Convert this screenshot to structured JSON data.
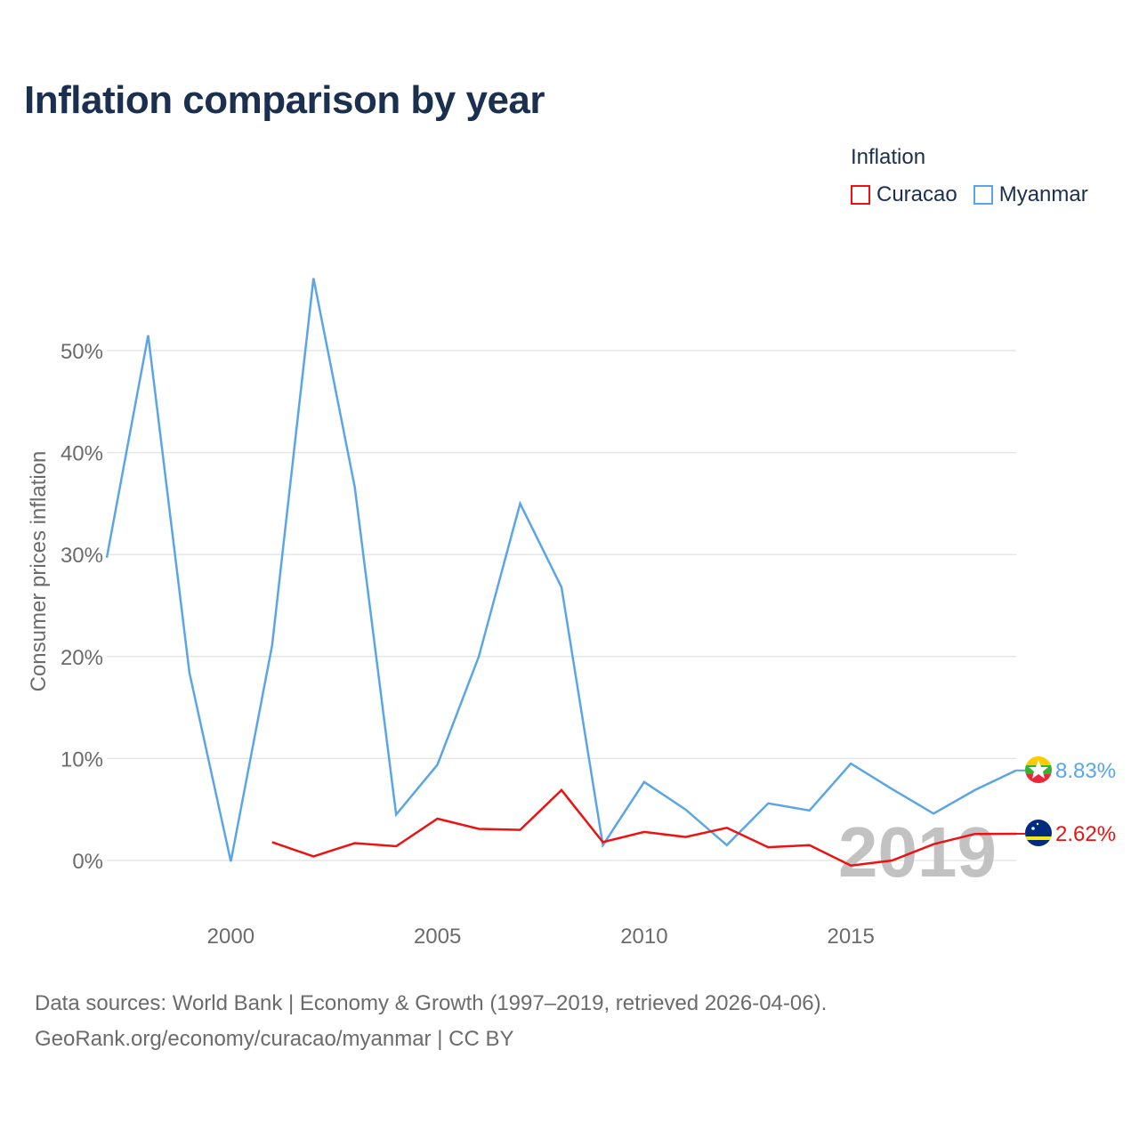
{
  "title": "Inflation comparison by year",
  "legend": {
    "title": "Inflation",
    "items": [
      {
        "label": "Curacao",
        "color": "#ee1111"
      },
      {
        "label": "Myanmar",
        "color": "#5aa5e6"
      }
    ]
  },
  "source": {
    "line1": "Data sources: World Bank | Economy & Growth (1997–2019, retrieved 2026-04-06).",
    "line2": "GeoRank.org/economy/curacao/myanmar | CC BY"
  },
  "chart_data": {
    "type": "line",
    "title": "Inflation comparison by year",
    "xlabel": "",
    "ylabel": "Consumer prices inflation",
    "xlim": [
      1997,
      2019
    ],
    "ylim": [
      -3,
      60
    ],
    "x_ticks": [
      2000,
      2005,
      2010,
      2015
    ],
    "x_tick_labels": [
      "2000",
      "2005",
      "2010",
      "2015"
    ],
    "y_ticks": [
      0,
      10,
      20,
      30,
      40,
      50
    ],
    "y_tick_labels": [
      "0%",
      "10%",
      "20%",
      "30%",
      "40%",
      "50%"
    ],
    "grid": true,
    "year_watermark": "2019",
    "series": [
      {
        "name": "Myanmar",
        "color": "#5aa5e6",
        "end_label": "8.83%",
        "flag": "myanmar-flag",
        "x": [
          1997,
          1998,
          1999,
          2000,
          2001,
          2002,
          2003,
          2004,
          2005,
          2006,
          2007,
          2008,
          2009,
          2010,
          2011,
          2012,
          2013,
          2014,
          2015,
          2016,
          2017,
          2018,
          2019
        ],
        "values": [
          29.7,
          51.5,
          18.4,
          -0.1,
          21.1,
          57.1,
          36.6,
          4.5,
          9.4,
          20.0,
          35.0,
          26.8,
          1.5,
          7.7,
          5.0,
          1.5,
          5.6,
          4.9,
          9.5,
          7.0,
          4.6,
          6.9,
          8.83
        ]
      },
      {
        "name": "Curacao",
        "color": "#ee1111",
        "end_label": "2.62%",
        "flag": "curacao-flag",
        "x": [
          2001,
          2002,
          2003,
          2004,
          2005,
          2006,
          2007,
          2008,
          2009,
          2010,
          2011,
          2012,
          2013,
          2014,
          2015,
          2016,
          2017,
          2018,
          2019
        ],
        "values": [
          1.8,
          0.4,
          1.7,
          1.4,
          4.1,
          3.1,
          3.0,
          6.9,
          1.8,
          2.8,
          2.3,
          3.2,
          1.3,
          1.5,
          -0.5,
          0.0,
          1.6,
          2.6,
          2.62
        ]
      }
    ]
  }
}
